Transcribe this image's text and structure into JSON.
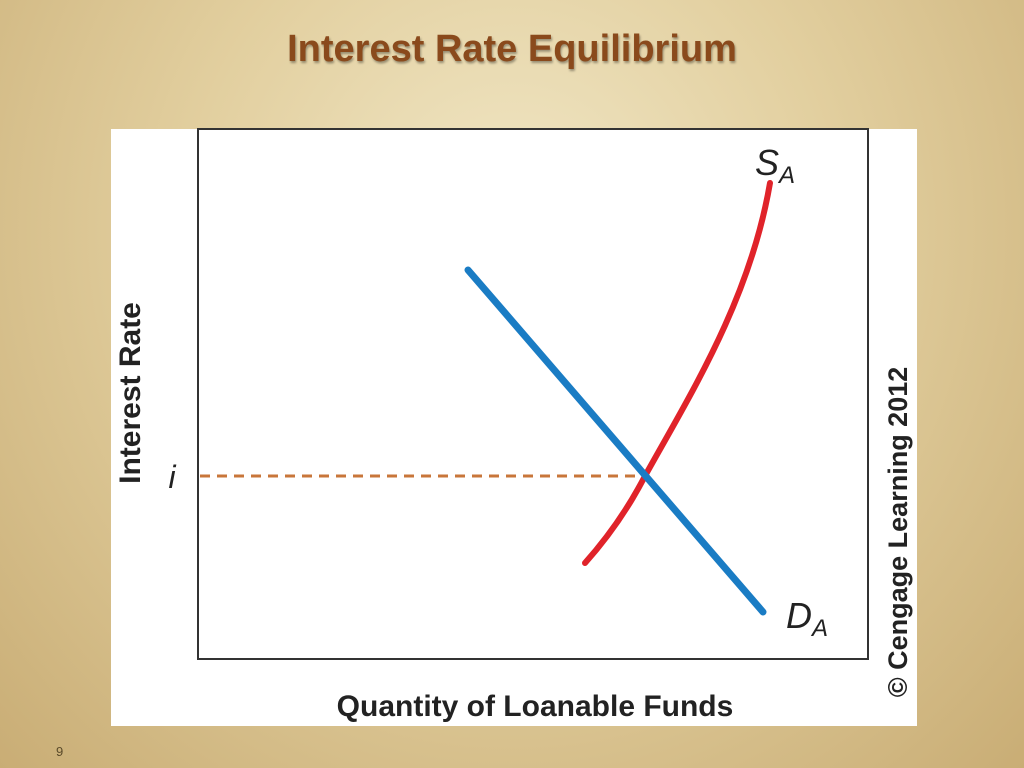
{
  "title": "Interest Rate Equilibrium",
  "slide_number": "9",
  "figure": {
    "y_axis_label": "Interest Rate",
    "x_axis_label": "Quantity of Loanable Funds",
    "equilibrium_label": "i",
    "supply_label": {
      "letter": "S",
      "subscript": "A"
    },
    "demand_label": {
      "letter": "D",
      "subscript": "A"
    },
    "copyright": "© Cengage Learning 2012"
  }
}
